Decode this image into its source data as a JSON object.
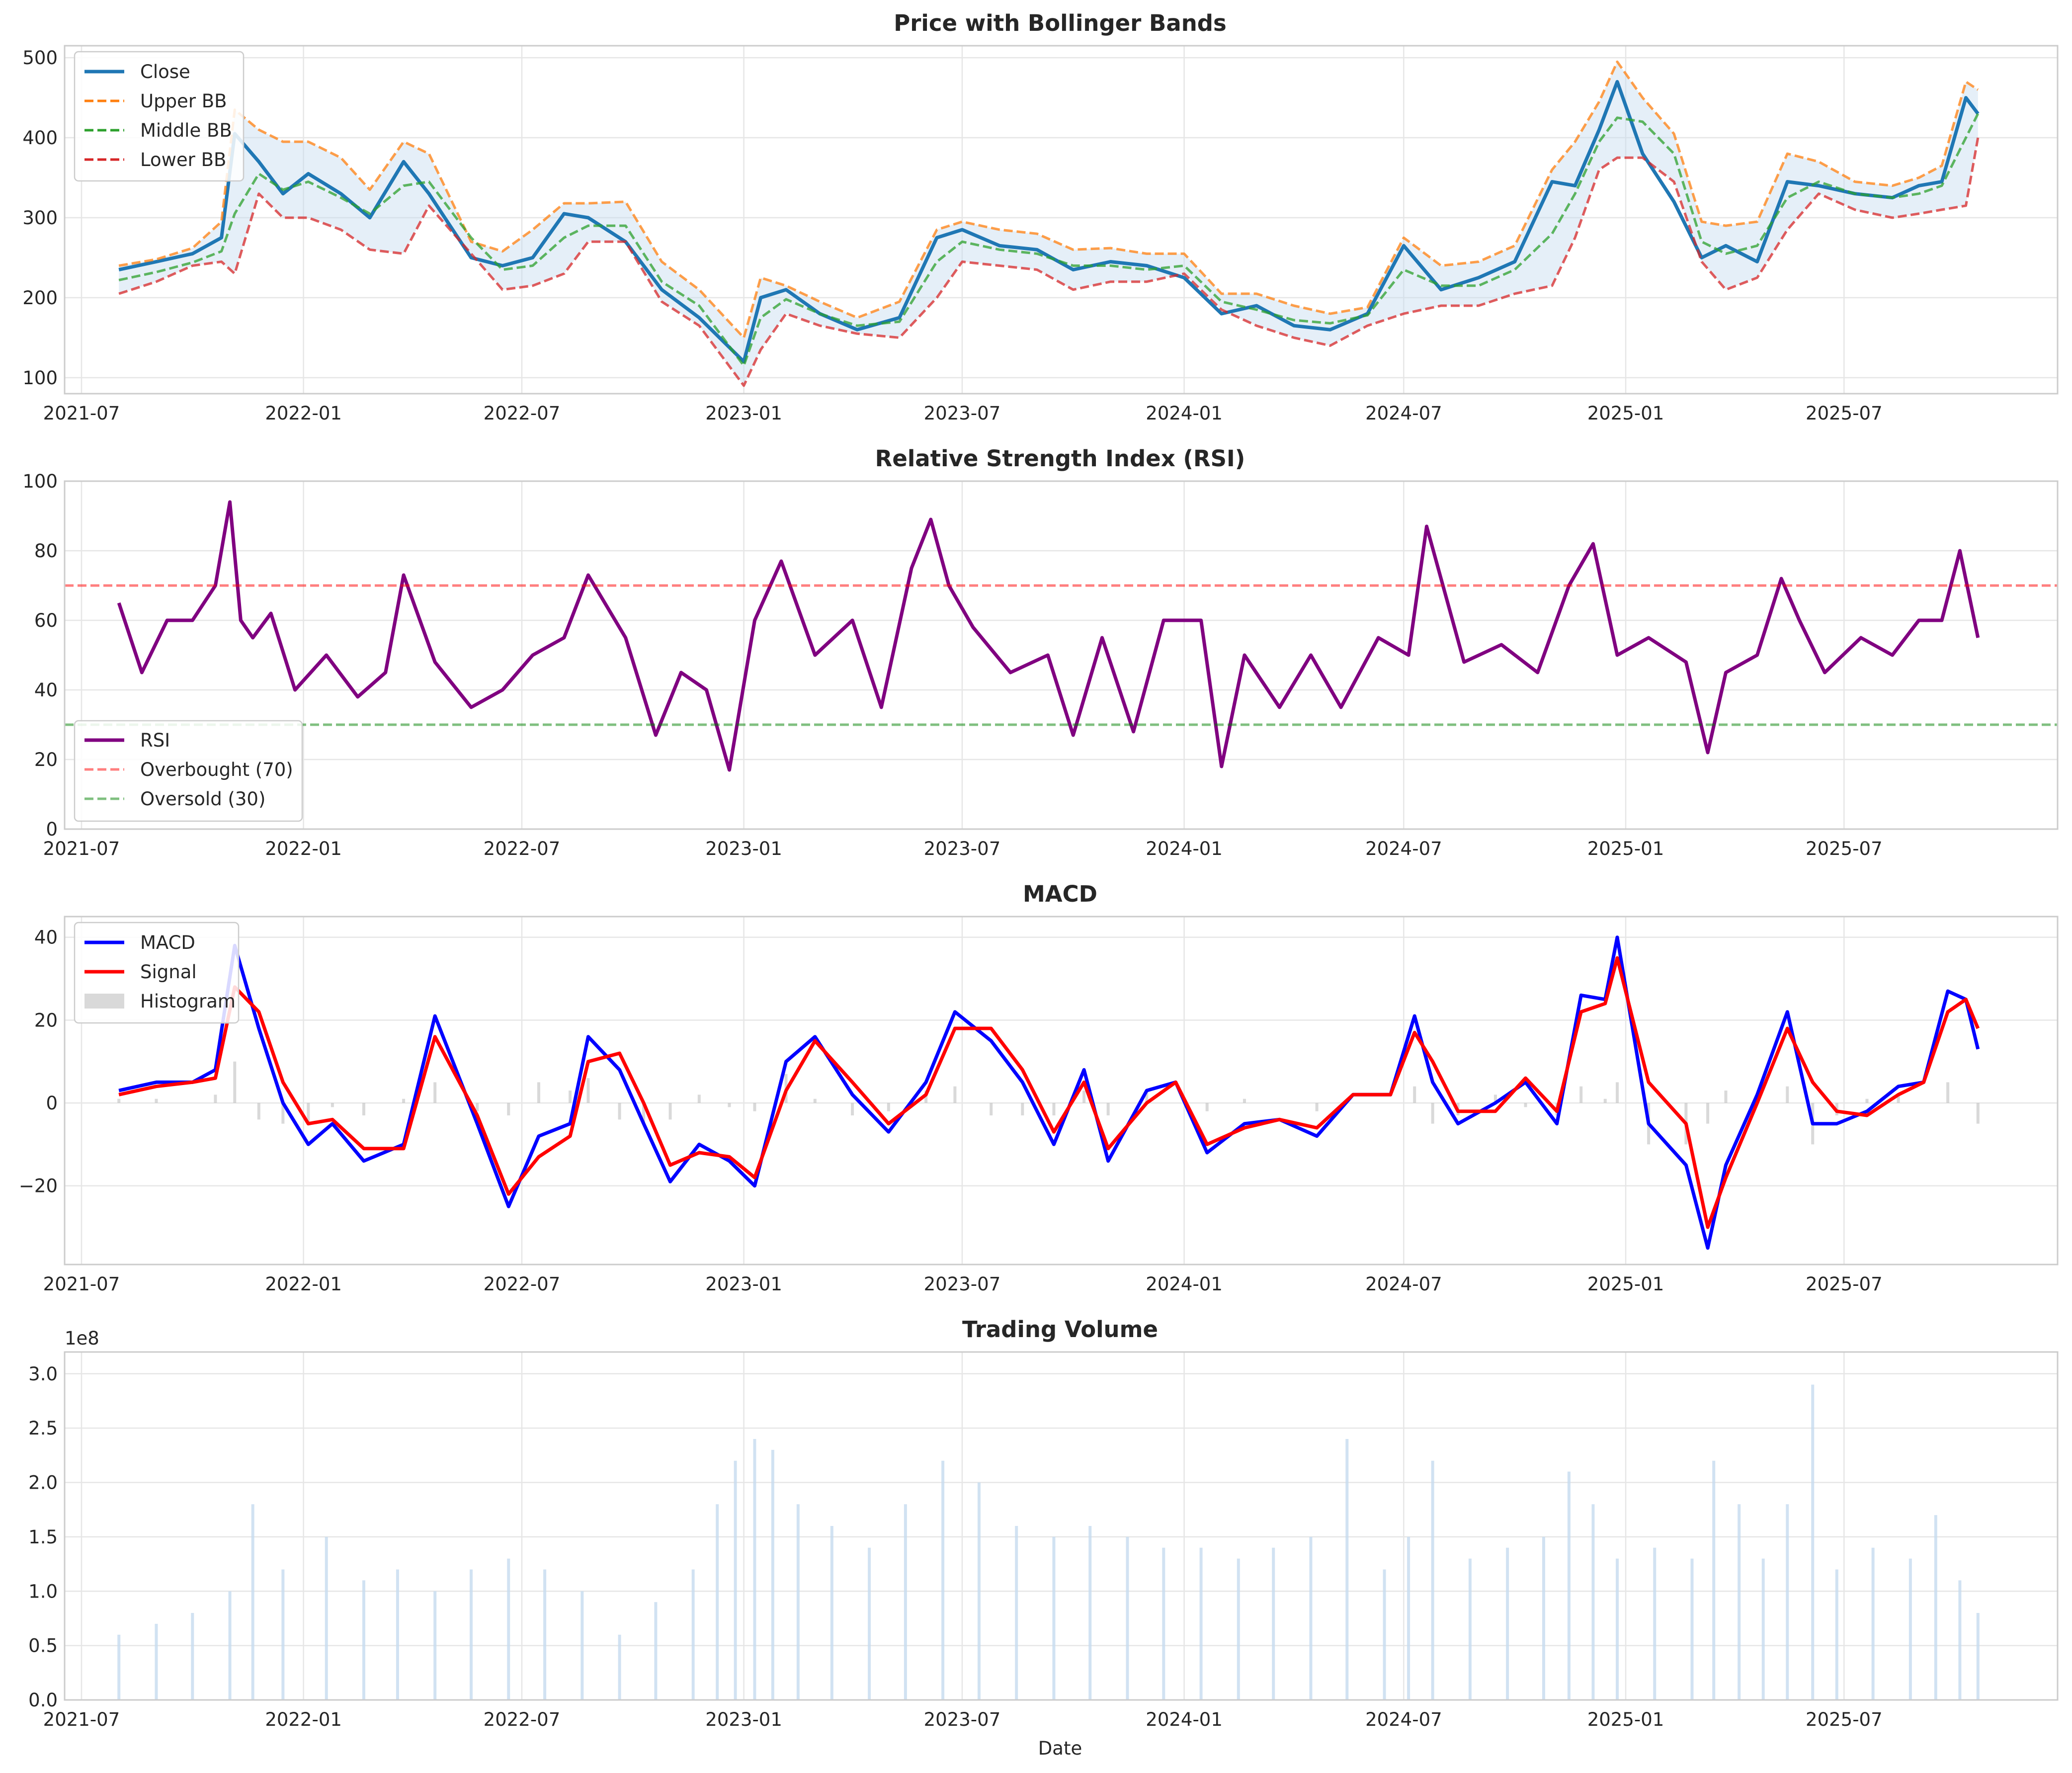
{
  "chart_data": [
    {
      "type": "line",
      "title": "Price with Bollinger Bands",
      "x_range": [
        "2021-06-17",
        "2025-12-25"
      ],
      "ylim": [
        80,
        515
      ],
      "yticks": [
        100,
        200,
        300,
        400,
        500
      ],
      "xticks": [
        "2021-07",
        "2022-01",
        "2022-07",
        "2023-01",
        "2023-07",
        "2024-01",
        "2024-07",
        "2025-01",
        "2025-07"
      ],
      "grid": true,
      "legend_position": "upper-left",
      "dates": [
        "2021-08-01",
        "2021-09-01",
        "2021-10-01",
        "2021-10-25",
        "2021-11-05",
        "2021-11-25",
        "2021-12-15",
        "2022-01-05",
        "2022-02-01",
        "2022-02-25",
        "2022-03-25",
        "2022-04-15",
        "2022-05-20",
        "2022-06-15",
        "2022-07-10",
        "2022-08-05",
        "2022-08-25",
        "2022-09-25",
        "2022-10-25",
        "2022-11-25",
        "2023-01-01",
        "2023-01-15",
        "2023-02-05",
        "2023-03-05",
        "2023-04-05",
        "2023-05-10",
        "2023-06-10",
        "2023-07-01",
        "2023-08-01",
        "2023-09-01",
        "2023-10-01",
        "2023-11-01",
        "2023-12-01",
        "2024-01-01",
        "2024-02-01",
        "2024-03-01",
        "2024-04-01",
        "2024-05-01",
        "2024-06-01",
        "2024-07-01",
        "2024-08-01",
        "2024-09-01",
        "2024-10-01",
        "2024-11-01",
        "2024-11-20",
        "2024-12-10",
        "2024-12-25",
        "2025-01-15",
        "2025-02-10",
        "2025-03-05",
        "2025-03-25",
        "2025-04-20",
        "2025-05-15",
        "2025-06-10",
        "2025-07-10",
        "2025-08-10",
        "2025-09-01",
        "2025-09-20",
        "2025-10-10",
        "2025-10-20"
      ],
      "series": [
        {
          "name": "Close",
          "color": "#1f77b4",
          "style": "solid",
          "values": [
            235,
            245,
            255,
            275,
            405,
            370,
            330,
            355,
            330,
            300,
            370,
            330,
            250,
            240,
            250,
            305,
            300,
            270,
            210,
            175,
            120,
            200,
            210,
            180,
            160,
            175,
            275,
            285,
            265,
            260,
            235,
            245,
            240,
            225,
            180,
            190,
            165,
            160,
            180,
            265,
            210,
            225,
            245,
            345,
            340,
            410,
            470,
            380,
            320,
            250,
            265,
            245,
            345,
            340,
            330,
            325,
            340,
            345,
            450,
            430
          ]
        },
        {
          "name": "Upper BB",
          "color": "#ff7f0e",
          "style": "dashed",
          "values": [
            240,
            248,
            262,
            295,
            435,
            410,
            395,
            395,
            375,
            335,
            395,
            380,
            270,
            258,
            285,
            318,
            318,
            320,
            245,
            210,
            150,
            225,
            215,
            195,
            175,
            195,
            285,
            295,
            285,
            280,
            260,
            262,
            255,
            255,
            205,
            205,
            190,
            180,
            188,
            275,
            240,
            245,
            265,
            360,
            395,
            445,
            495,
            450,
            405,
            295,
            290,
            295,
            380,
            370,
            345,
            340,
            350,
            365,
            470,
            460
          ]
        },
        {
          "name": "Middle BB",
          "color": "#2ca02c",
          "style": "dashed",
          "values": [
            222,
            232,
            244,
            258,
            305,
            355,
            335,
            345,
            325,
            305,
            340,
            345,
            275,
            235,
            240,
            275,
            290,
            290,
            220,
            190,
            115,
            175,
            198,
            180,
            165,
            170,
            245,
            270,
            260,
            255,
            240,
            240,
            235,
            240,
            195,
            185,
            172,
            168,
            178,
            235,
            215,
            215,
            235,
            280,
            330,
            395,
            425,
            420,
            380,
            270,
            255,
            265,
            325,
            345,
            330,
            325,
            330,
            340,
            400,
            430
          ]
        },
        {
          "name": "Lower BB",
          "color": "#d62728",
          "style": "dashed",
          "values": [
            205,
            220,
            240,
            245,
            230,
            330,
            300,
            300,
            285,
            260,
            255,
            315,
            255,
            210,
            215,
            230,
            270,
            270,
            195,
            165,
            90,
            135,
            180,
            165,
            155,
            150,
            200,
            245,
            240,
            235,
            210,
            220,
            220,
            230,
            185,
            165,
            150,
            140,
            165,
            180,
            190,
            190,
            205,
            215,
            275,
            360,
            375,
            375,
            345,
            245,
            210,
            225,
            285,
            330,
            310,
            300,
            305,
            310,
            315,
            400
          ]
        }
      ],
      "fill_between": [
        "Upper BB",
        "Lower BB"
      ]
    },
    {
      "type": "line",
      "title": "Relative Strength Index (RSI)",
      "x_range": [
        "2021-06-17",
        "2025-12-25"
      ],
      "ylim": [
        0,
        100
      ],
      "yticks": [
        0,
        20,
        40,
        60,
        80,
        100
      ],
      "xticks": [
        "2021-07",
        "2022-01",
        "2022-07",
        "2023-01",
        "2023-07",
        "2024-01",
        "2024-07",
        "2025-01",
        "2025-07"
      ],
      "grid": true,
      "legend_position": "lower-left",
      "dates": [
        "2021-08-01",
        "2021-08-20",
        "2021-09-10",
        "2021-10-01",
        "2021-10-20",
        "2021-11-01",
        "2021-11-10",
        "2021-11-20",
        "2021-12-05",
        "2021-12-25",
        "2022-01-20",
        "2022-02-15",
        "2022-03-10",
        "2022-03-25",
        "2022-04-20",
        "2022-05-20",
        "2022-06-15",
        "2022-07-10",
        "2022-08-05",
        "2022-08-25",
        "2022-09-25",
        "2022-10-20",
        "2022-11-10",
        "2022-12-01",
        "2022-12-20",
        "2023-01-10",
        "2023-02-01",
        "2023-03-01",
        "2023-04-01",
        "2023-04-25",
        "2023-05-20",
        "2023-06-05",
        "2023-06-20",
        "2023-07-10",
        "2023-08-10",
        "2023-09-10",
        "2023-10-01",
        "2023-10-25",
        "2023-11-20",
        "2023-12-15",
        "2024-01-15",
        "2024-02-01",
        "2024-02-20",
        "2024-03-20",
        "2024-04-15",
        "2024-05-10",
        "2024-06-10",
        "2024-07-05",
        "2024-07-20",
        "2024-08-20",
        "2024-09-20",
        "2024-10-20",
        "2024-11-15",
        "2024-12-05",
        "2024-12-25",
        "2025-01-20",
        "2025-02-20",
        "2025-03-10",
        "2025-03-25",
        "2025-04-20",
        "2025-05-10",
        "2025-05-25",
        "2025-06-15",
        "2025-07-15",
        "2025-08-10",
        "2025-09-01",
        "2025-09-20",
        "2025-10-05",
        "2025-10-20"
      ],
      "series": [
        {
          "name": "RSI",
          "color": "#800080",
          "style": "solid",
          "values": [
            65,
            45,
            60,
            60,
            70,
            94,
            60,
            55,
            62,
            40,
            50,
            38,
            45,
            73,
            48,
            35,
            40,
            50,
            55,
            73,
            55,
            27,
            45,
            40,
            17,
            60,
            77,
            50,
            60,
            35,
            75,
            89,
            70,
            58,
            45,
            50,
            27,
            55,
            28,
            60,
            60,
            18,
            50,
            35,
            50,
            35,
            55,
            50,
            87,
            48,
            53,
            45,
            70,
            82,
            50,
            55,
            48,
            22,
            45,
            50,
            72,
            60,
            45,
            55,
            50,
            60,
            60,
            80,
            55
          ]
        },
        {
          "name": "Overbought (70)",
          "color": "#ff0000",
          "style": "dashed",
          "constant": 70
        },
        {
          "name": "Oversold (30)",
          "color": "#008000",
          "style": "dashed",
          "constant": 30
        }
      ]
    },
    {
      "type": "line",
      "title": "MACD",
      "x_range": [
        "2021-06-17",
        "2025-12-25"
      ],
      "ylim": [
        -39,
        45
      ],
      "yticks": [
        -20,
        0,
        20,
        40
      ],
      "ytick_labels": [
        "−20",
        "0",
        "20",
        "40"
      ],
      "xticks": [
        "2021-07",
        "2022-01",
        "2022-07",
        "2023-01",
        "2023-07",
        "2024-01",
        "2024-07",
        "2025-01",
        "2025-07"
      ],
      "grid": true,
      "legend_position": "upper-left",
      "dates": [
        "2021-08-01",
        "2021-09-01",
        "2021-10-01",
        "2021-10-20",
        "2021-11-05",
        "2021-11-25",
        "2021-12-15",
        "2022-01-05",
        "2022-01-25",
        "2022-02-20",
        "2022-03-25",
        "2022-04-20",
        "2022-05-25",
        "2022-06-20",
        "2022-07-15",
        "2022-08-10",
        "2022-08-25",
        "2022-09-20",
        "2022-10-10",
        "2022-11-01",
        "2022-11-25",
        "2022-12-20",
        "2023-01-10",
        "2023-02-05",
        "2023-03-01",
        "2023-04-01",
        "2023-05-01",
        "2023-06-01",
        "2023-06-25",
        "2023-07-25",
        "2023-08-20",
        "2023-09-15",
        "2023-10-10",
        "2023-10-30",
        "2023-12-01",
        "2023-12-25",
        "2024-01-20",
        "2024-02-20",
        "2024-03-20",
        "2024-04-20",
        "2024-05-20",
        "2024-06-20",
        "2024-07-10",
        "2024-07-25",
        "2024-08-15",
        "2024-09-15",
        "2024-10-10",
        "2024-11-05",
        "2024-11-25",
        "2024-12-15",
        "2024-12-25",
        "2025-01-20",
        "2025-02-20",
        "2025-03-10",
        "2025-03-25",
        "2025-04-20",
        "2025-05-15",
        "2025-06-05",
        "2025-06-25",
        "2025-07-20",
        "2025-08-15",
        "2025-09-05",
        "2025-09-25",
        "2025-10-10",
        "2025-10-20"
      ],
      "series": [
        {
          "name": "MACD",
          "color": "#0000ff",
          "style": "solid",
          "values": [
            3,
            5,
            5,
            8,
            38,
            18,
            0,
            -10,
            -5,
            -14,
            -10,
            21,
            -5,
            -25,
            -8,
            -5,
            16,
            8,
            -5,
            -19,
            -10,
            -14,
            -20,
            10,
            16,
            2,
            -7,
            5,
            22,
            15,
            5,
            -10,
            8,
            -14,
            3,
            5,
            -12,
            -5,
            -4,
            -8,
            2,
            2,
            21,
            5,
            -5,
            0,
            5,
            -5,
            26,
            25,
            40,
            -5,
            -15,
            -35,
            -15,
            2,
            22,
            -5,
            -5,
            -2,
            4,
            5,
            27,
            25,
            13
          ]
        },
        {
          "name": "Signal",
          "color": "#ff0000",
          "style": "solid",
          "values": [
            2,
            4,
            5,
            6,
            28,
            22,
            5,
            -5,
            -4,
            -11,
            -11,
            16,
            -3,
            -22,
            -13,
            -8,
            10,
            12,
            0,
            -15,
            -12,
            -13,
            -18,
            3,
            15,
            5,
            -5,
            2,
            18,
            18,
            8,
            -7,
            5,
            -11,
            0,
            5,
            -10,
            -6,
            -4,
            -6,
            2,
            2,
            17,
            10,
            -2,
            -2,
            6,
            -2,
            22,
            24,
            35,
            5,
            -5,
            -30,
            -18,
            0,
            18,
            5,
            -2,
            -3,
            2,
            5,
            22,
            25,
            18
          ]
        },
        {
          "name": "Histogram",
          "color": "#bfbfbf",
          "style": "bars",
          "values": [
            1,
            1,
            0,
            2,
            10,
            -4,
            -5,
            -5,
            -1,
            -3,
            1,
            5,
            -2,
            -3,
            5,
            3,
            6,
            -4,
            -5,
            -4,
            2,
            -1,
            -2,
            7,
            1,
            -3,
            -2,
            3,
            4,
            -3,
            -3,
            -3,
            3,
            -3,
            3,
            0,
            -2,
            1,
            0,
            -2,
            0,
            0,
            4,
            -5,
            -3,
            2,
            -1,
            -3,
            4,
            1,
            5,
            -10,
            -10,
            -5,
            3,
            2,
            4,
            -10,
            -3,
            1,
            2,
            0,
            5,
            0,
            -5
          ]
        }
      ]
    },
    {
      "type": "bar",
      "title": "Trading Volume",
      "xlabel": "Date",
      "offset_label": "1e8",
      "x_range": [
        "2021-06-17",
        "2025-12-25"
      ],
      "ylim": [
        0,
        3.2
      ],
      "yticks": [
        0.0,
        0.5,
        1.0,
        1.5,
        2.0,
        2.5,
        3.0
      ],
      "ytick_labels": [
        "0.0",
        "0.5",
        "1.0",
        "1.5",
        "2.0",
        "2.5",
        "3.0"
      ],
      "xticks": [
        "2021-07",
        "2022-01",
        "2022-07",
        "2023-01",
        "2023-07",
        "2024-01",
        "2024-07",
        "2025-01",
        "2025-07"
      ],
      "grid": true,
      "color": "#c6dbef",
      "dates": [
        "2021-08-01",
        "2021-09-01",
        "2021-10-01",
        "2021-11-01",
        "2021-11-20",
        "2021-12-15",
        "2022-01-20",
        "2022-02-20",
        "2022-03-20",
        "2022-04-20",
        "2022-05-20",
        "2022-06-20",
        "2022-07-20",
        "2022-08-20",
        "2022-09-20",
        "2022-10-20",
        "2022-11-20",
        "2022-12-10",
        "2022-12-25",
        "2023-01-10",
        "2023-01-25",
        "2023-02-15",
        "2023-03-15",
        "2023-04-15",
        "2023-05-15",
        "2023-06-15",
        "2023-07-15",
        "2023-08-15",
        "2023-09-15",
        "2023-10-15",
        "2023-11-15",
        "2023-12-15",
        "2024-01-15",
        "2024-02-15",
        "2024-03-15",
        "2024-04-15",
        "2024-05-15",
        "2024-06-15",
        "2024-07-05",
        "2024-07-25",
        "2024-08-25",
        "2024-09-25",
        "2024-10-25",
        "2024-11-15",
        "2024-12-05",
        "2024-12-25",
        "2025-01-25",
        "2025-02-25",
        "2025-03-15",
        "2025-04-05",
        "2025-04-25",
        "2025-05-15",
        "2025-06-05",
        "2025-06-25",
        "2025-07-25",
        "2025-08-25",
        "2025-09-15",
        "2025-10-05",
        "2025-10-20"
      ],
      "values": [
        0.6,
        0.7,
        0.8,
        1.0,
        1.8,
        1.2,
        1.5,
        1.1,
        1.2,
        1.0,
        1.2,
        1.3,
        1.2,
        1.0,
        0.6,
        0.9,
        1.2,
        1.8,
        2.2,
        2.4,
        2.3,
        1.8,
        1.6,
        1.4,
        1.8,
        2.2,
        2.0,
        1.6,
        1.5,
        1.6,
        1.5,
        1.4,
        1.4,
        1.3,
        1.4,
        1.5,
        2.4,
        1.2,
        1.5,
        2.2,
        1.3,
        1.4,
        1.5,
        2.1,
        1.8,
        1.3,
        1.4,
        1.3,
        2.2,
        1.8,
        1.3,
        1.8,
        2.9,
        1.2,
        1.4,
        1.3,
        1.7,
        1.1,
        0.8
      ]
    }
  ]
}
